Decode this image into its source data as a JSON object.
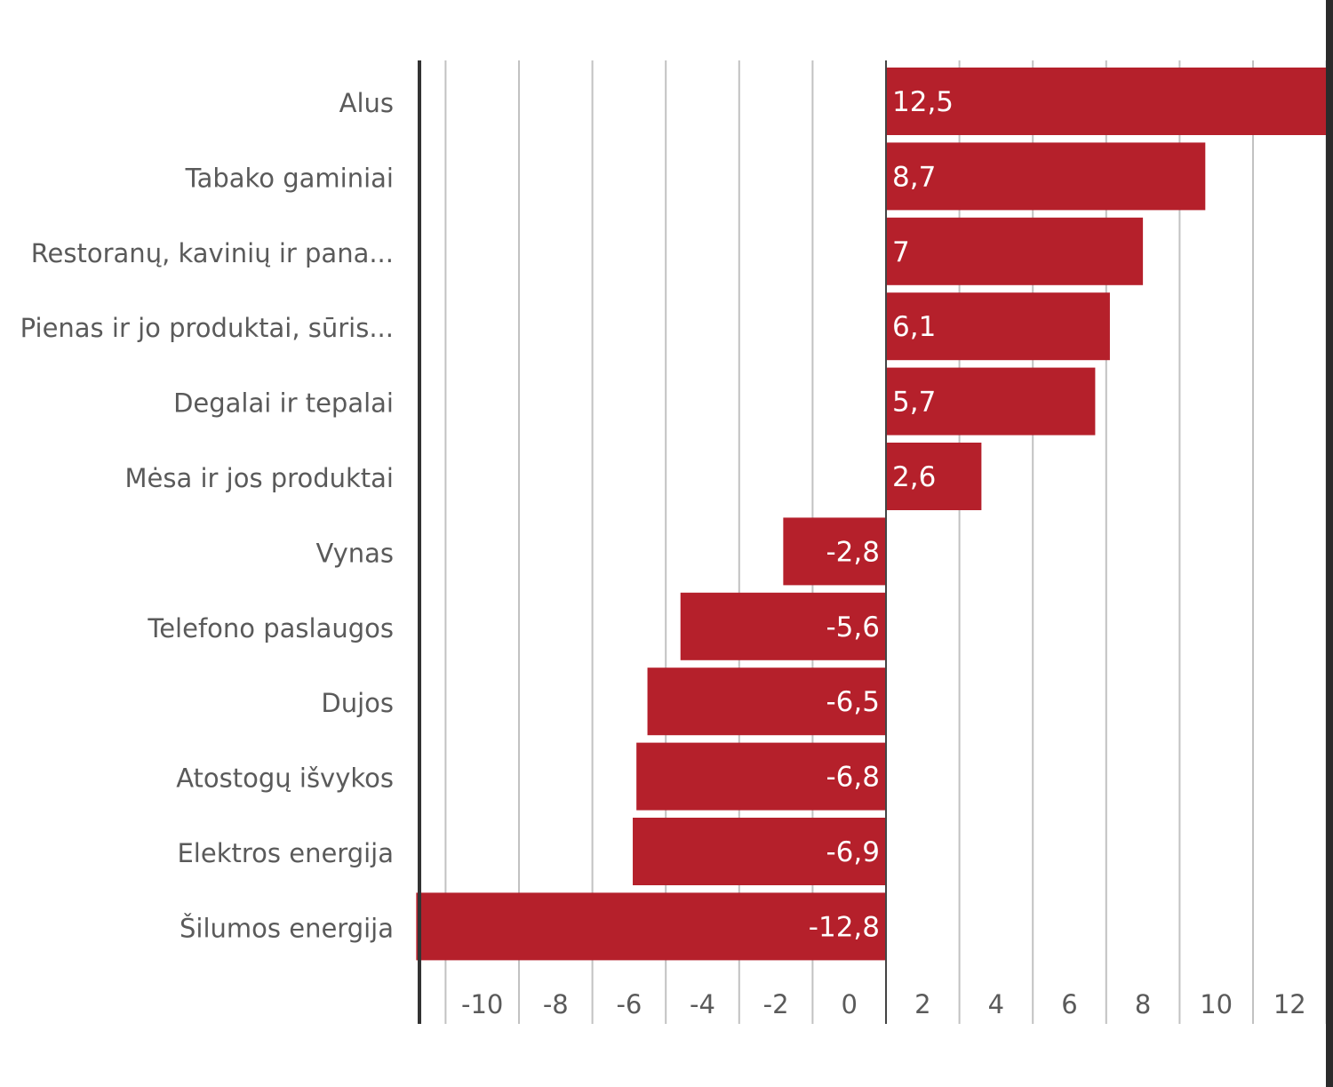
{
  "chart_data": {
    "type": "bar",
    "orientation": "horizontal",
    "categories": [
      "Alus",
      "Tabako gaminiai",
      "Restoranų, kavinių ir pana...",
      "Pienas ir jo produktai, sūris...",
      "Degalai ir tepalai",
      "Mėsa ir jos produktai",
      "Vynas",
      "Telefono paslaugos",
      "Dujos",
      "Atostogų išvykos",
      "Elektros energija",
      "Šilumos energija"
    ],
    "values": [
      12.5,
      8.7,
      7,
      6.1,
      5.7,
      2.6,
      -2.8,
      -5.6,
      -6.5,
      -6.8,
      -6.9,
      -12.8
    ],
    "value_labels": [
      "12,5",
      "8,7",
      "7",
      "6,1",
      "5,7",
      "2,6",
      "-2,8",
      "-5,6",
      "-6,5",
      "-6,8",
      "-6,9",
      "-12,8"
    ],
    "xlim": [
      -12,
      12
    ],
    "xticks": [
      -10,
      -8,
      -6,
      -4,
      -2,
      0,
      2,
      4,
      6,
      8,
      10,
      12
    ],
    "xtick_labels": [
      "-10",
      "-8",
      "-6",
      "-4",
      "-2",
      "0",
      "2",
      "4",
      "6",
      "8",
      "10",
      "12"
    ],
    "grid": true,
    "bar_color": "#b5202b",
    "title": "",
    "xlabel": "",
    "ylabel": ""
  }
}
